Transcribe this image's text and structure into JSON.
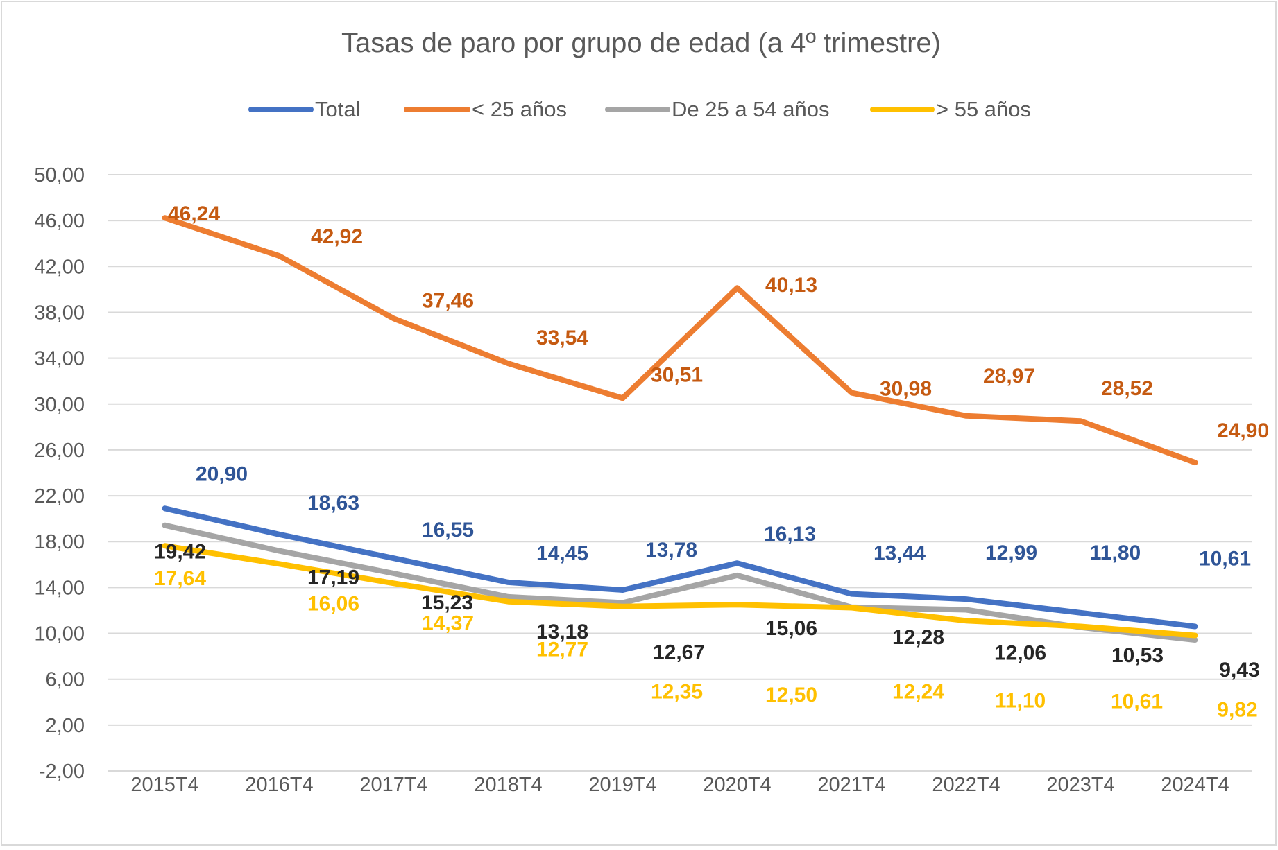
{
  "chart_data": {
    "type": "line",
    "title": "Tasas de paro por grupo de edad (a 4º trimestre)",
    "xlabel": "",
    "ylabel": "",
    "ylim": [
      -2,
      50
    ],
    "yticks": [
      "50,00",
      "46,00",
      "42,00",
      "38,00",
      "34,00",
      "30,00",
      "26,00",
      "22,00",
      "18,00",
      "14,00",
      "10,00",
      "6,00",
      "2,00",
      "-2,00"
    ],
    "categories": [
      "2015T4",
      "2016T4",
      "2017T4",
      "2018T4",
      "2019T4",
      "2020T4",
      "2021T4",
      "2022T4",
      "2023T4",
      "2024T4"
    ],
    "legend_position": "top",
    "grid": true,
    "series": [
      {
        "name": "Total",
        "color": "#4472C4",
        "label_color": "#2F5597",
        "values": [
          20.9,
          18.63,
          16.55,
          14.45,
          13.78,
          16.13,
          13.44,
          12.99,
          11.8,
          10.61
        ],
        "labels": [
          "20,90",
          "18,63",
          "16,55",
          "14,45",
          "13,78",
          "16,13",
          "13,44",
          "12,99",
          "11,80",
          "10,61"
        ]
      },
      {
        "name": "< 25 años",
        "color": "#ED7D31",
        "label_color": "#C55A11",
        "values": [
          46.24,
          42.92,
          37.46,
          33.54,
          30.51,
          40.13,
          30.98,
          28.97,
          28.52,
          24.9
        ],
        "labels": [
          "46,24",
          "42,92",
          "37,46",
          "33,54",
          "30,51",
          "40,13",
          "30,98",
          "28,97",
          "28,52",
          "24,90"
        ]
      },
      {
        "name": "De 25 a 54 años",
        "color": "#A5A5A5",
        "label_color": "#262626",
        "values": [
          19.42,
          17.19,
          15.23,
          13.18,
          12.67,
          15.06,
          12.28,
          12.06,
          10.53,
          9.43
        ],
        "labels": [
          "19,42",
          "17,19",
          "15,23",
          "13,18",
          "12,67",
          "15,06",
          "12,28",
          "12,06",
          "10,53",
          "9,43"
        ]
      },
      {
        "name": "> 55 años",
        "color": "#FFC000",
        "label_color": "#FFC000",
        "values": [
          17.64,
          16.06,
          14.37,
          12.77,
          12.35,
          12.5,
          12.24,
          11.1,
          10.61,
          9.82
        ],
        "labels": [
          "17,64",
          "16,06",
          "14,37",
          "12,77",
          "12,35",
          "12,50",
          "12,24",
          "11,10",
          "10,61",
          "9,82"
        ]
      }
    ]
  }
}
